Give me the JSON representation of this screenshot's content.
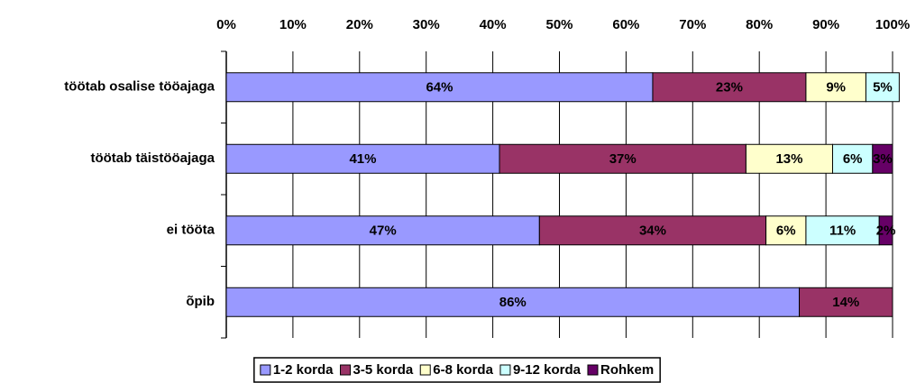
{
  "chart_data": {
    "type": "stacked_bar_horizontal",
    "categories": [
      "töötab osalise tööajaga",
      "töötab täistööajaga",
      "ei tööta",
      "õpib"
    ],
    "series": [
      {
        "name": "1-2 korda",
        "color": "#9999ff",
        "values": [
          64,
          41,
          47,
          86
        ],
        "value_labels": [
          "64%",
          "41%",
          "47%",
          "86%"
        ]
      },
      {
        "name": "3-5 korda",
        "color": "#993366",
        "values": [
          23,
          37,
          34,
          14
        ],
        "value_labels": [
          "23%",
          "37%",
          "34%",
          "14%"
        ]
      },
      {
        "name": "6-8 korda",
        "color": "#ffffcc",
        "values": [
          9,
          13,
          6,
          null
        ],
        "value_labels": [
          "9%",
          "13%",
          "6%",
          null
        ]
      },
      {
        "name": "9-12 korda",
        "color": "#ccffff",
        "values": [
          5,
          6,
          11,
          null
        ],
        "value_labels": [
          "5%",
          "6%",
          "11%",
          null
        ]
      },
      {
        "name": "Rohkem",
        "color": "#660066",
        "values": [
          null,
          3,
          2,
          null
        ],
        "value_labels": [
          null,
          "3%",
          "2%",
          null
        ]
      }
    ],
    "xlim": [
      0,
      100
    ],
    "xticks": [
      {
        "value": 0,
        "label": "0%"
      },
      {
        "value": 10,
        "label": "10%"
      },
      {
        "value": 20,
        "label": "20%"
      },
      {
        "value": 30,
        "label": "30%"
      },
      {
        "value": 40,
        "label": "40%"
      },
      {
        "value": 50,
        "label": "50%"
      },
      {
        "value": 60,
        "label": "60%"
      },
      {
        "value": 70,
        "label": "70%"
      },
      {
        "value": 80,
        "label": "80%"
      },
      {
        "value": 90,
        "label": "90%"
      },
      {
        "value": 100,
        "label": "100%"
      }
    ],
    "grid": true,
    "legend": "bottom"
  }
}
